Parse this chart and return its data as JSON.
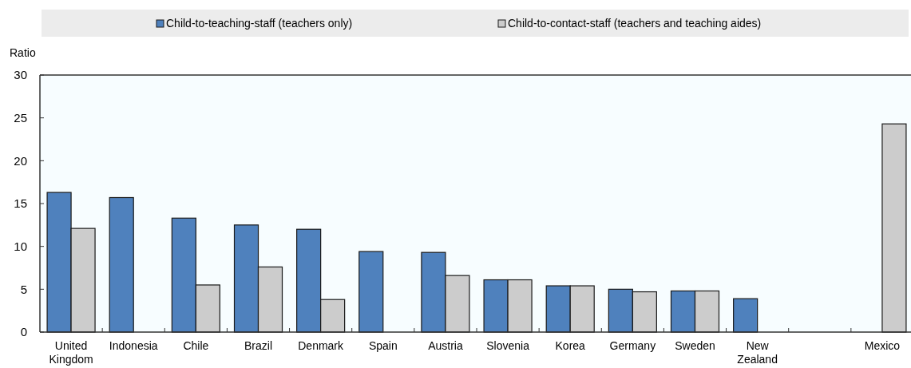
{
  "chart_data": {
    "type": "bar",
    "ylabel": "Ratio",
    "categories": [
      "United Kingdom",
      "Indonesia",
      "Chile",
      "Brazil",
      "Denmark",
      "Spain",
      "Austria",
      "Slovenia",
      "Korea",
      "Germany",
      "Sweden",
      "New Zealand",
      null,
      "Mexico"
    ],
    "series": [
      {
        "name": "Child-to-teaching-staff (teachers only)",
        "color": "#4f81bd",
        "values": [
          16.3,
          15.7,
          13.3,
          12.5,
          12.0,
          9.4,
          9.3,
          6.1,
          5.4,
          5.0,
          4.8,
          3.9,
          null,
          null
        ]
      },
      {
        "name": "Child-to-contact-staff (teachers and teaching aides)",
        "color": "#cccccc",
        "values": [
          12.1,
          null,
          5.5,
          7.6,
          3.8,
          null,
          6.6,
          6.1,
          5.4,
          4.7,
          4.8,
          null,
          null,
          24.3
        ]
      }
    ],
    "ylim": [
      0,
      30
    ],
    "yticks": [
      0,
      5,
      10,
      15,
      20,
      25,
      30
    ],
    "grid": false,
    "legend": "top"
  }
}
